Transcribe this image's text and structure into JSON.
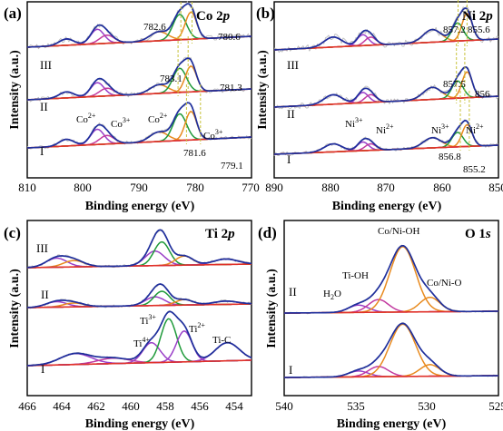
{
  "colors": {
    "raw": "#bdbdbd",
    "envelope": "#1f2f9c",
    "background": "#e0312a",
    "purple": "#9a3fc8",
    "green": "#1f9a3a",
    "orange": "#e88a1e",
    "magenta": "#c23aa0",
    "yellow_dash": "#c8c23a"
  },
  "chart_data": [
    {
      "type": "line",
      "panel": "(a)",
      "title": "Co 2p",
      "xlabel": "Binding energy (eV)",
      "ylabel": "Intensity (a.u.)",
      "xlim": [
        810,
        770
      ],
      "xticks": [
        "810",
        "800",
        "790",
        "780",
        "770"
      ],
      "sample_labels": [
        "III",
        "II",
        "I"
      ],
      "peaks": [
        {
          "label": "Co",
          "sup": "2+",
          "x": 797.5,
          "color": "purple"
        },
        {
          "label": "Co",
          "sup": "3+",
          "x": 794.5,
          "color": "purple"
        },
        {
          "label": "Co",
          "sup": "2+",
          "x": 785.5,
          "color": "orange"
        },
        {
          "label": "Co",
          "sup": "3+",
          "x": 780.5,
          "color": "green"
        }
      ],
      "annotations": [
        {
          "sample": "III",
          "values": [
            "782.6",
            "780.6"
          ]
        },
        {
          "sample": "II",
          "values": [
            "783.1",
            "781.3"
          ]
        },
        {
          "sample": "I",
          "values": [
            "781.6",
            "779.1"
          ]
        }
      ]
    },
    {
      "type": "line",
      "panel": "(b)",
      "title": "Ni 2p",
      "xlabel": "Binding energy (eV)",
      "ylabel": "Intensity (a.u.)",
      "xlim": [
        890,
        850
      ],
      "xticks": [
        "890",
        "880",
        "870",
        "860",
        "850"
      ],
      "sample_labels": [
        "III",
        "II",
        "I"
      ],
      "peaks": [
        {
          "label": "Ni",
          "sup": "3+",
          "x": 875,
          "color": "purple"
        },
        {
          "label": "Ni",
          "sup": "2+",
          "x": 873,
          "color": "purple"
        },
        {
          "label": "Ni",
          "sup": "3+",
          "x": 857,
          "color": "green"
        },
        {
          "label": "Ni",
          "sup": "2+",
          "x": 855.5,
          "color": "orange"
        }
      ],
      "annotations": [
        {
          "sample": "III",
          "values": [
            "857.2",
            "855.6"
          ]
        },
        {
          "sample": "II",
          "values": [
            "857.5",
            "856"
          ]
        },
        {
          "sample": "I",
          "values": [
            "856.8",
            "855.2"
          ]
        }
      ]
    },
    {
      "type": "line",
      "panel": "(c)",
      "title": "Ti 2p",
      "xlabel": "Binding energy (eV)",
      "ylabel": "Intensity (a.u.)",
      "xlim": [
        466,
        453
      ],
      "xticks": [
        "466",
        "464",
        "462",
        "460",
        "458",
        "456",
        "454"
      ],
      "sample_labels": [
        "III",
        "II",
        "I"
      ],
      "peaks": [
        {
          "label": "Ti",
          "sup": "4+",
          "x": 458.7
        },
        {
          "label": "Ti",
          "sup": "3+",
          "x": 457.6
        },
        {
          "label": "Ti",
          "sup": "2+",
          "x": 456.8
        },
        {
          "label": "Ti-C",
          "sup": "",
          "x": 454.5
        }
      ]
    },
    {
      "type": "line",
      "panel": "(d)",
      "title": "O 1s",
      "xlabel": "Binding energy (eV)",
      "ylabel": "Intensity (a.u.)",
      "xlim": [
        540,
        525
      ],
      "xticks": [
        "540",
        "535",
        "530",
        "525"
      ],
      "sample_labels": [
        "II",
        "I"
      ],
      "peaks": [
        {
          "label": "H",
          "sub": "2",
          "tail": "O",
          "x": 534.8
        },
        {
          "label": "Ti-OH",
          "x": 533.4
        },
        {
          "label": "Co/Ni-OH",
          "x": 531.7
        },
        {
          "label": "Co/Ni-O",
          "x": 529.8
        }
      ]
    }
  ]
}
